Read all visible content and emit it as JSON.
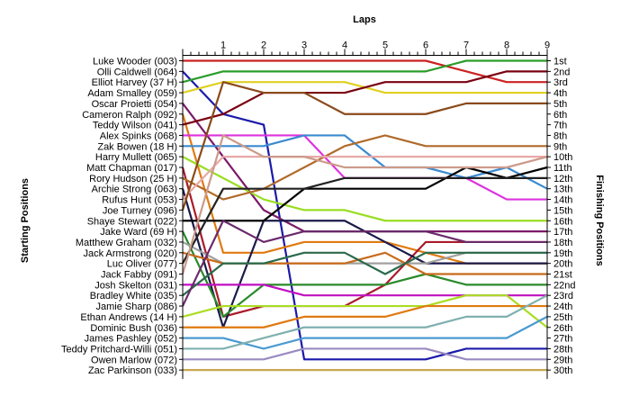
{
  "chart_data": {
    "type": "line",
    "title": "",
    "xlabel": "Laps",
    "ylabel_left": "Starting Positions",
    "ylabel_right": "Finishing Positions",
    "x": [
      0,
      1,
      2,
      3,
      4,
      5,
      6,
      7,
      8,
      9
    ],
    "x_tick_labels": [
      "1",
      "2",
      "3",
      "4",
      "5",
      "6",
      "7",
      "8",
      "9"
    ],
    "ylim": [
      1,
      30
    ],
    "grid": false,
    "finishing_labels": [
      "1st",
      "2nd",
      "3rd",
      "4th",
      "5th",
      "6th",
      "7th",
      "8th",
      "9th",
      "10th",
      "11th",
      "12th",
      "13th",
      "14th",
      "15th",
      "16th",
      "17th",
      "18th",
      "19th",
      "20th",
      "21st",
      "22nd",
      "23rd",
      "24th",
      "25th",
      "26th",
      "27th",
      "28th",
      "29th",
      "30th"
    ],
    "series": [
      {
        "name": "Luke Wooder (003)",
        "color": "#cc2222",
        "values": [
          1,
          1,
          1,
          1,
          1,
          1,
          1,
          2,
          3,
          3
        ]
      },
      {
        "name": "Olli Caldwell (064)",
        "color": "#1a1aaa",
        "values": [
          2,
          6,
          7,
          29,
          29,
          29,
          29,
          28,
          28,
          28
        ]
      },
      {
        "name": "Elliot Harvey (37 H)",
        "color": "#2a9d2a",
        "values": [
          3,
          2,
          2,
          2,
          2,
          2,
          2,
          1,
          1,
          1
        ]
      },
      {
        "name": "Adam Smalley (059)",
        "color": "#e0d020",
        "values": [
          4,
          3,
          3,
          3,
          3,
          4,
          4,
          4,
          4,
          4
        ]
      },
      {
        "name": "Oscar Proietti (054)",
        "color": "#7a1a6a",
        "values": [
          5,
          10,
          15,
          17,
          17,
          17,
          17,
          17,
          17,
          17
        ]
      },
      {
        "name": "Cameron Ralph (092)",
        "color": "#e07a10",
        "values": [
          6,
          19,
          19,
          18,
          18,
          18,
          19,
          20,
          20,
          20
        ]
      },
      {
        "name": "Teddy Wilson (041)",
        "color": "#7a0010",
        "values": [
          7,
          6,
          4,
          4,
          4,
          3,
          3,
          3,
          2,
          2
        ]
      },
      {
        "name": "Alex Spinks (068)",
        "color": "#dd33dd",
        "values": [
          8,
          8,
          8,
          8,
          12,
          12,
          12,
          12,
          14,
          14
        ]
      },
      {
        "name": "Zak Bowen (18 H)",
        "color": "#3a8ad0",
        "values": [
          9,
          9,
          9,
          8,
          8,
          11,
          11,
          12,
          11,
          13
        ]
      },
      {
        "name": "Harry Mullett (065)",
        "color": "#99dd22",
        "values": [
          10,
          12,
          14,
          15,
          15,
          16,
          16,
          16,
          16,
          16
        ]
      },
      {
        "name": "Matt Chapman (017)",
        "color": "#aa1a2a",
        "values": [
          11,
          25,
          24,
          24,
          24,
          22,
          18,
          18,
          18,
          18
        ]
      },
      {
        "name": "Rory Hudson (25 H)",
        "color": "#b06a2a",
        "values": [
          12,
          14,
          13,
          11,
          9,
          8,
          9,
          9,
          9,
          9
        ]
      },
      {
        "name": "Archie Strong (063)",
        "color": "#1a1a4a",
        "values": [
          13,
          26,
          16,
          16,
          16,
          18,
          20,
          20,
          20,
          20
        ]
      },
      {
        "name": "Rufus Hunt (053)",
        "color": "#e8a8a8",
        "values": [
          14,
          10,
          10,
          10,
          10,
          10,
          10,
          10,
          10,
          10
        ]
      },
      {
        "name": "Joe Turney (096)",
        "color": "#8a4a1a",
        "values": [
          15,
          3,
          4,
          4,
          6,
          6,
          6,
          5,
          5,
          5
        ]
      },
      {
        "name": "Shaye Stewart (022)",
        "color": "#000000",
        "values": [
          16,
          16,
          16,
          13,
          13,
          13,
          13,
          11,
          12,
          11
        ]
      },
      {
        "name": "Jake Ward (69 H)",
        "color": "#2a8a2a",
        "values": [
          17,
          25,
          22,
          22,
          22,
          22,
          21,
          22,
          22,
          22
        ]
      },
      {
        "name": "Matthew Graham (032)",
        "color": "#a0a0a0",
        "values": [
          18,
          20,
          20,
          20,
          20,
          20,
          20,
          19,
          19,
          19
        ]
      },
      {
        "name": "Jack Armstrong (020)",
        "color": "#c86a1a",
        "values": [
          19,
          20,
          20,
          20,
          20,
          19,
          21,
          21,
          21,
          21
        ]
      },
      {
        "name": "Luc Oliver (077)",
        "color": "#222222",
        "values": [
          20,
          13,
          13,
          13,
          12,
          12,
          12,
          12,
          12,
          12
        ]
      },
      {
        "name": "Jack Fabby (091)",
        "color": "#cc9a8a",
        "values": [
          21,
          8,
          10,
          10,
          11,
          11,
          11,
          11,
          11,
          10
        ]
      },
      {
        "name": "Josh Skelton (031)",
        "color": "#c010c0",
        "values": [
          22,
          22,
          22,
          23,
          23,
          23,
          23,
          23,
          23,
          23
        ]
      },
      {
        "name": "Bradley White (035)",
        "color": "#2a6a4a",
        "values": [
          23,
          20,
          20,
          19,
          19,
          21,
          19,
          19,
          19,
          19
        ]
      },
      {
        "name": "Jamie Sharp (086)",
        "color": "#6a2a6a",
        "values": [
          24,
          16,
          18,
          17,
          17,
          17,
          17,
          18,
          18,
          18
        ]
      },
      {
        "name": "Ethan Andrews (14 H)",
        "color": "#aadd22",
        "values": [
          25,
          24,
          24,
          24,
          24,
          24,
          24,
          23,
          23,
          26
        ]
      },
      {
        "name": "Dominic Bush (036)",
        "color": "#e07a10",
        "values": [
          26,
          26,
          26,
          25,
          25,
          25,
          24,
          24,
          24,
          24
        ]
      },
      {
        "name": "James Pashley (052)",
        "color": "#4a9ad0",
        "values": [
          27,
          27,
          28,
          27,
          27,
          27,
          27,
          27,
          27,
          25
        ]
      },
      {
        "name": "Teddy Pritchard-Willi (051)",
        "color": "#80b0b0",
        "values": [
          28,
          28,
          27,
          26,
          26,
          26,
          26,
          25,
          25,
          23
        ]
      },
      {
        "name": "Owen Marlow (072)",
        "color": "#9a8ac0",
        "values": [
          29,
          29,
          29,
          28,
          28,
          28,
          28,
          29,
          29,
          29
        ]
      },
      {
        "name": "Zac Parkinson (033)",
        "color": "#c8a850",
        "values": [
          30,
          30,
          30,
          30,
          30,
          30,
          30,
          30,
          30,
          30
        ]
      }
    ]
  }
}
